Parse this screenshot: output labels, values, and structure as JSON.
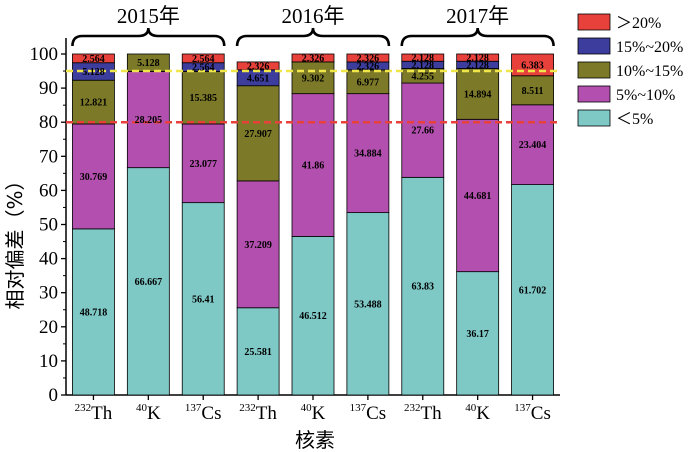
{
  "chart_data": {
    "type": "stacked-bar",
    "ylabel": "相对偏差（%）",
    "xlabel": "核素",
    "ylim": [
      0,
      100
    ],
    "yticks": [
      0,
      10,
      20,
      30,
      40,
      50,
      60,
      70,
      80,
      90,
      100
    ],
    "grid": false,
    "legend_position": "top-right",
    "groups": [
      {
        "label": "2015年",
        "categories": [
          0,
          1,
          2
        ]
      },
      {
        "label": "2016年",
        "categories": [
          3,
          4,
          5
        ]
      },
      {
        "label": "2017年",
        "categories": [
          6,
          7,
          8
        ]
      }
    ],
    "categories": [
      {
        "mass": "232",
        "element": "Th"
      },
      {
        "mass": "40",
        "element": "K"
      },
      {
        "mass": "137",
        "element": "Cs"
      },
      {
        "mass": "232",
        "element": "Th"
      },
      {
        "mass": "40",
        "element": "K"
      },
      {
        "mass": "137",
        "element": "Cs"
      },
      {
        "mass": "232",
        "element": "Th"
      },
      {
        "mass": "40",
        "element": "K"
      },
      {
        "mass": "137",
        "element": "Cs"
      }
    ],
    "series": [
      {
        "name": "＜5%",
        "color": "#7ec8c6",
        "values": [
          48.718,
          66.667,
          56.41,
          25.581,
          46.512,
          53.488,
          63.83,
          36.17,
          61.702
        ],
        "labels": [
          "48.718",
          "66.667",
          "56.41",
          "25.581",
          "46.512",
          "53.488",
          "63.83",
          "36.17",
          "61.702"
        ]
      },
      {
        "name": "5%~10%",
        "color": "#b34fae",
        "values": [
          30.769,
          28.205,
          23.077,
          37.209,
          41.86,
          34.884,
          27.66,
          44.681,
          23.404
        ],
        "labels": [
          "30.769",
          "28.205",
          "23.077",
          "37.209",
          "41.86",
          "34.884",
          "27.66",
          "44.681",
          "23.404"
        ]
      },
      {
        "name": "10%~15%",
        "color": "#7c7a28",
        "values": [
          12.821,
          5.128,
          15.385,
          27.907,
          9.302,
          6.977,
          4.255,
          14.894,
          8.511
        ],
        "labels": [
          "12.821",
          "5.128",
          "15.385",
          "27.907",
          "9.302",
          "6.977",
          "4.255",
          "14.894",
          "8.511"
        ]
      },
      {
        "name": "15%~20%",
        "color": "#3d3d9e",
        "values": [
          5.128,
          0,
          2.564,
          4.651,
          0,
          2.326,
          2.128,
          2.128,
          0
        ],
        "labels": [
          "5.128",
          "",
          "2.564",
          "4.651",
          "",
          "2.326",
          "2.128",
          "2.128",
          ""
        ]
      },
      {
        "name": "＞20%",
        "color": "#e8413c",
        "values": [
          2.564,
          0,
          2.564,
          2.326,
          2.326,
          2.326,
          2.128,
          2.128,
          6.383
        ],
        "labels": [
          "2.564",
          "",
          "2.564",
          "2.326",
          "2.326",
          "2.326",
          "2.128",
          "2.128",
          "6.383"
        ]
      }
    ],
    "reference_lines": [
      {
        "y": 95,
        "color": "#f0e64a",
        "style": "dashed"
      },
      {
        "y": 80,
        "color": "#e8413c",
        "style": "dashed"
      }
    ]
  }
}
